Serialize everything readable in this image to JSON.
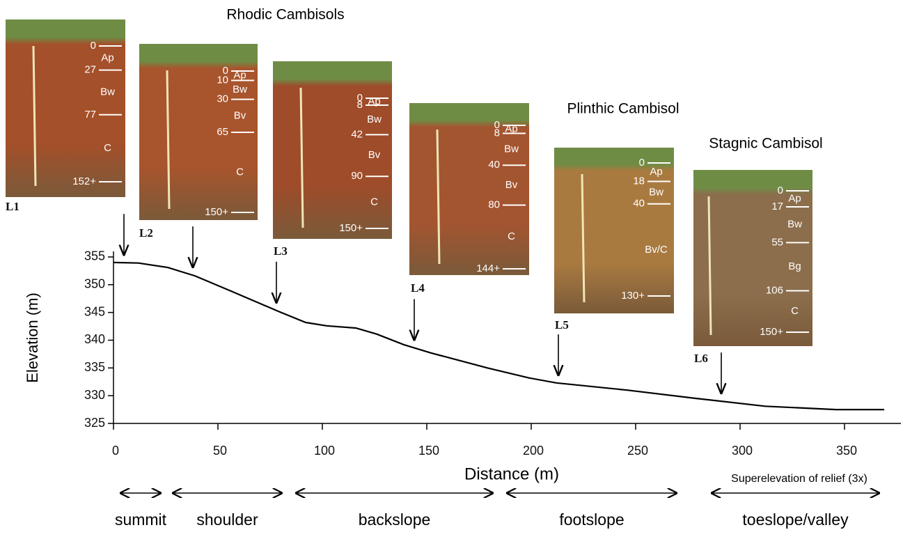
{
  "chart_data": {
    "type": "line",
    "xlabel": "Distance (m)",
    "ylabel": "Elevation (m)",
    "note": "Superelevation of relief (3x)",
    "x": [
      0,
      12,
      26,
      39,
      56,
      79,
      92,
      102,
      116,
      126,
      139,
      152,
      179,
      199,
      212,
      246,
      279,
      312,
      346,
      369
    ],
    "series": [
      {
        "color": "#000000",
        "values": [
          354,
          353.9,
          353.1,
          351.6,
          348.9,
          345.2,
          343.2,
          342.6,
          342.2,
          341.1,
          339.2,
          337.7,
          335,
          333.2,
          332.3,
          331,
          329.5,
          328.1,
          327.5,
          327.5
        ]
      }
    ],
    "xlim": [
      0,
      377
    ],
    "xticks": [
      0,
      50,
      100,
      150,
      200,
      250,
      300,
      350
    ],
    "ylim": [
      325,
      356
    ],
    "yticks": [
      325,
      330,
      335,
      340,
      345,
      350,
      355
    ],
    "locations": [
      {
        "label": "L1",
        "x": 5
      },
      {
        "label": "L2",
        "x": 38
      },
      {
        "label": "L3",
        "x": 78
      },
      {
        "label": "L4",
        "x": 144
      },
      {
        "label": "L5",
        "x": 213
      },
      {
        "label": "L6",
        "x": 291
      }
    ],
    "landforms": [
      {
        "label": "summit",
        "from": 3,
        "to": 23
      },
      {
        "label": "shoulder",
        "from": 28,
        "to": 81
      },
      {
        "label": "backslope",
        "from": 87,
        "to": 182
      },
      {
        "label": "footslope",
        "from": 188,
        "to": 270
      },
      {
        "label": "toeslope/valley",
        "from": 286,
        "to": 367
      }
    ]
  },
  "soil_groups": [
    "Rhodic Cambisols",
    "Plinthic Cambisol",
    "Stagnic Cambisol"
  ],
  "profiles": [
    {
      "color": "#a4502a",
      "depths": [
        0,
        27,
        77,
        {
          "value": 152,
          "label": "152+"
        }
      ],
      "horizons": [
        "Ap",
        "Bw",
        "C"
      ]
    },
    {
      "color": "#a8542c",
      "depths": [
        0,
        10,
        30,
        65,
        {
          "value": 150,
          "label": "150+"
        }
      ],
      "horizons": [
        "Ap",
        "Bw",
        "Bv",
        "C"
      ]
    },
    {
      "color": "#9e4c2a",
      "depths": [
        0,
        8,
        42,
        90,
        {
          "value": 150,
          "label": "150+"
        }
      ],
      "horizons": [
        "Ap",
        "Bw",
        "Bv",
        "C"
      ]
    },
    {
      "color": "#a35530",
      "depths": [
        0,
        8,
        40,
        80,
        {
          "value": 144,
          "label": "144+"
        }
      ],
      "horizons": [
        "Ap",
        "Bw",
        "Bv",
        "C"
      ]
    },
    {
      "color": "#a97a40",
      "depths": [
        0,
        18,
        40,
        {
          "value": 130,
          "label": "130+"
        }
      ],
      "horizons": [
        "Ap",
        "Bw",
        "Bv/C"
      ]
    },
    {
      "color": "#8c6e4c",
      "depths": [
        0,
        17,
        55,
        106,
        {
          "value": 150,
          "label": "150+"
        }
      ],
      "horizons": [
        "Ap",
        "Bw",
        "Bg",
        "C"
      ]
    }
  ]
}
